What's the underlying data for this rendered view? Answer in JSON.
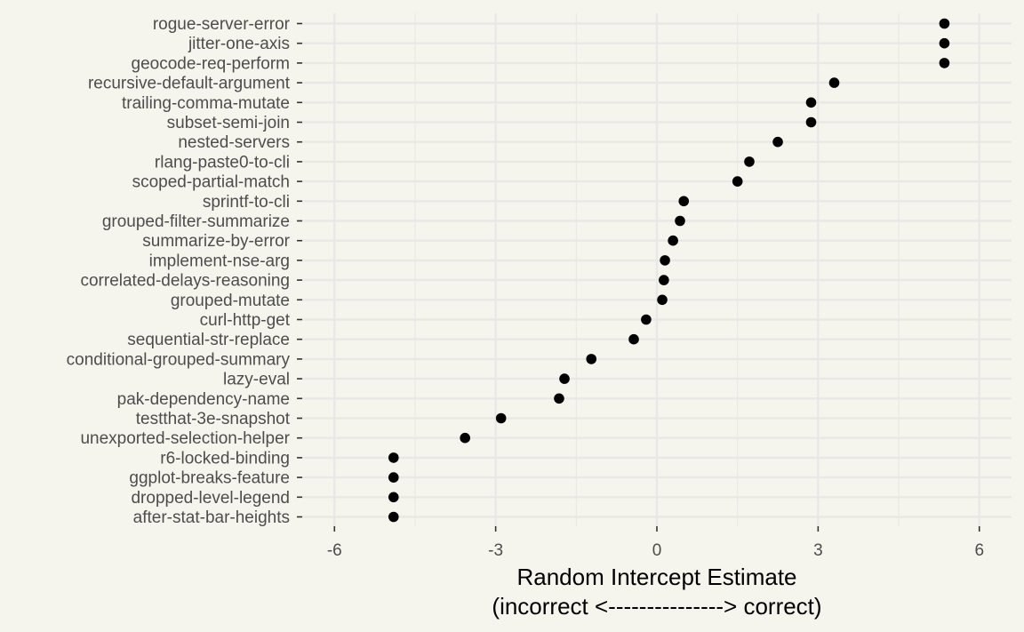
{
  "chart_data": {
    "type": "scatter",
    "title": "",
    "xlabel": "Random Intercept Estimate\n(incorrect <---------------> correct)",
    "ylabel": "",
    "xlim": [
      -6.6,
      6.6
    ],
    "x_ticks": [
      -6,
      -3,
      0,
      3,
      6
    ],
    "x_tick_labels": [
      "-6",
      "-3",
      "0",
      "3",
      "6"
    ],
    "grid": true,
    "legend": "none",
    "categories": [
      "rogue-server-error",
      "jitter-one-axis",
      "geocode-req-perform",
      "recursive-default-argument",
      "trailing-comma-mutate",
      "subset-semi-join",
      "nested-servers",
      "rlang-paste0-to-cli",
      "scoped-partial-match",
      "sprintf-to-cli",
      "grouped-filter-summarize",
      "summarize-by-error",
      "implement-nse-arg",
      "correlated-delays-reasoning",
      "grouped-mutate",
      "curl-http-get",
      "sequential-str-replace",
      "conditional-grouped-summary",
      "lazy-eval",
      "pak-dependency-name",
      "testthat-3e-snapshot",
      "unexported-selection-helper",
      "r6-locked-binding",
      "ggplot-breaks-feature",
      "dropped-level-legend",
      "after-stat-bar-heights"
    ],
    "values": [
      5.35,
      5.35,
      5.35,
      3.3,
      2.87,
      2.87,
      2.25,
      1.72,
      1.5,
      0.5,
      0.43,
      0.3,
      0.15,
      0.13,
      0.1,
      -0.2,
      -0.43,
      -1.22,
      -1.72,
      -1.82,
      -2.9,
      -3.57,
      -4.9,
      -4.9,
      -4.9,
      -4.9
    ],
    "colors": {
      "background": "#f5f5ee",
      "grid": "#e8e8e6",
      "point": "#000000",
      "text": "#4d4d4d",
      "axis_title": "#000000"
    }
  }
}
